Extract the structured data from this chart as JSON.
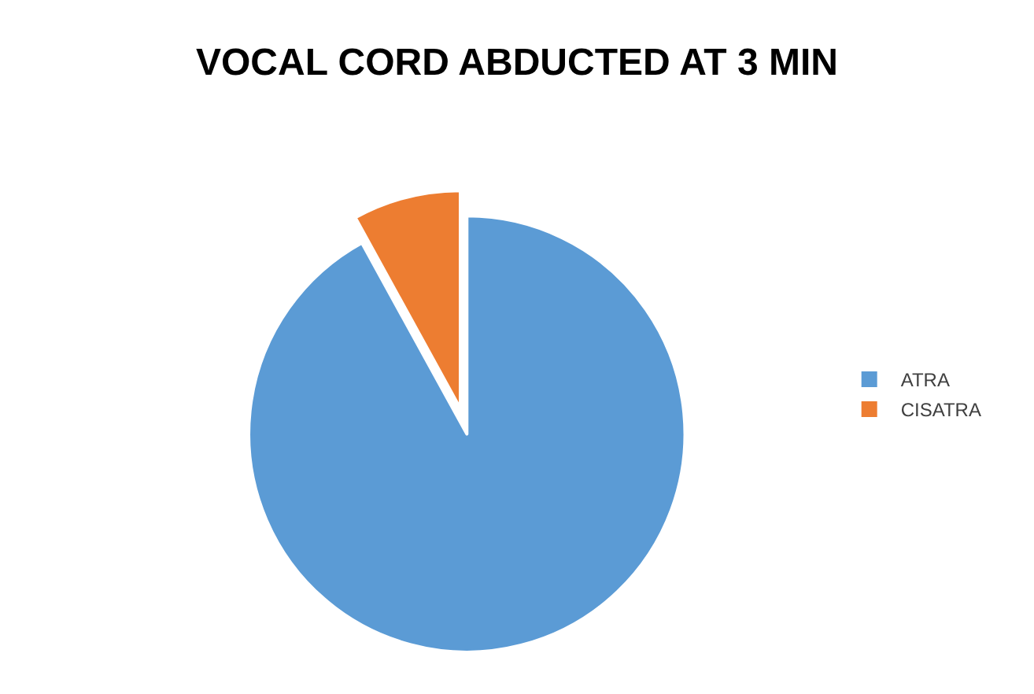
{
  "chart_data": {
    "type": "pie",
    "title": "VOCAL CORD ABDUCTED AT 3 MIN",
    "categories": [
      "ATRA",
      "CISATRA"
    ],
    "values": [
      92,
      8
    ],
    "colors": [
      "#5b9bd5",
      "#ed7d31"
    ],
    "legend": "right"
  }
}
